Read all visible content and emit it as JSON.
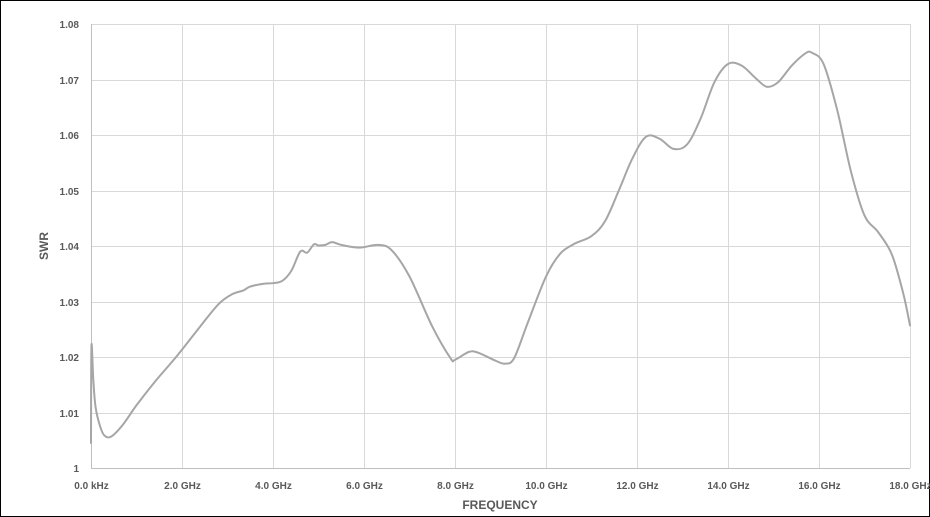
{
  "chart_data": {
    "type": "line",
    "title": "",
    "xlabel": "FREQUENCY",
    "ylabel": "SWR",
    "x_unit": "GHz",
    "xlim": [
      0,
      18
    ],
    "ylim": [
      1,
      1.08
    ],
    "grid": true,
    "legend": "none",
    "x_tick_labels": [
      "0.0 kHz",
      "2.0 GHz",
      "4.0 GHz",
      "6.0 GHz",
      "8.0 GHz",
      "10.0 GHz",
      "12.0 GHz",
      "14.0 GHz",
      "16.0 GHz",
      "18.0 GHz"
    ],
    "y_tick_labels": [
      "1",
      "1.01",
      "1.02",
      "1.03",
      "1.04",
      "1.05",
      "1.06",
      "1.07",
      "1.08"
    ],
    "colors": {
      "line": "#a6a6a6",
      "grid": "#d9d9d9",
      "axis": "#bfbfbf",
      "text": "#595959",
      "border": "#000000"
    },
    "series": [
      {
        "values": [
          [
            0.0,
            1.0045
          ],
          [
            0.01,
            1.022
          ],
          [
            0.05,
            1.016
          ],
          [
            0.1,
            1.011
          ],
          [
            0.2,
            1.0075
          ],
          [
            0.3,
            1.0058
          ],
          [
            0.45,
            1.0057
          ],
          [
            0.7,
            1.0078
          ],
          [
            1.0,
            1.0113
          ],
          [
            1.4,
            1.0155
          ],
          [
            1.9,
            1.0203
          ],
          [
            2.4,
            1.0255
          ],
          [
            2.8,
            1.0295
          ],
          [
            3.1,
            1.0313
          ],
          [
            3.35,
            1.032
          ],
          [
            3.5,
            1.0327
          ],
          [
            3.8,
            1.0332
          ],
          [
            4.0,
            1.0333
          ],
          [
            4.2,
            1.0337
          ],
          [
            4.4,
            1.0355
          ],
          [
            4.6,
            1.039
          ],
          [
            4.75,
            1.0388
          ],
          [
            4.9,
            1.0403
          ],
          [
            5.0,
            1.0401
          ],
          [
            5.15,
            1.0402
          ],
          [
            5.3,
            1.0407
          ],
          [
            5.5,
            1.0402
          ],
          [
            5.9,
            1.0397
          ],
          [
            6.3,
            1.0402
          ],
          [
            6.6,
            1.0393
          ],
          [
            7.0,
            1.0345
          ],
          [
            7.5,
            1.0255
          ],
          [
            7.9,
            1.0198
          ],
          [
            8.0,
            1.0195
          ],
          [
            8.3,
            1.0209
          ],
          [
            8.5,
            1.0208
          ],
          [
            8.9,
            1.0193
          ],
          [
            9.1,
            1.0188
          ],
          [
            9.3,
            1.0198
          ],
          [
            9.6,
            1.0262
          ],
          [
            10.0,
            1.0345
          ],
          [
            10.3,
            1.0385
          ],
          [
            10.6,
            1.0403
          ],
          [
            11.0,
            1.0418
          ],
          [
            11.3,
            1.0445
          ],
          [
            11.6,
            1.05
          ],
          [
            11.9,
            1.0558
          ],
          [
            12.2,
            1.0597
          ],
          [
            12.5,
            1.0593
          ],
          [
            12.8,
            1.0575
          ],
          [
            13.1,
            1.0583
          ],
          [
            13.4,
            1.063
          ],
          [
            13.7,
            1.0695
          ],
          [
            14.0,
            1.0728
          ],
          [
            14.3,
            1.0725
          ],
          [
            14.6,
            1.0703
          ],
          [
            14.85,
            1.0687
          ],
          [
            15.1,
            1.0695
          ],
          [
            15.4,
            1.0725
          ],
          [
            15.7,
            1.0747
          ],
          [
            15.85,
            1.0748
          ],
          [
            16.1,
            1.0728
          ],
          [
            16.4,
            1.0645
          ],
          [
            16.7,
            1.0535
          ],
          [
            17.0,
            1.0455
          ],
          [
            17.3,
            1.0425
          ],
          [
            17.6,
            1.0385
          ],
          [
            17.85,
            1.0315
          ],
          [
            18.0,
            1.0257
          ]
        ]
      }
    ]
  }
}
